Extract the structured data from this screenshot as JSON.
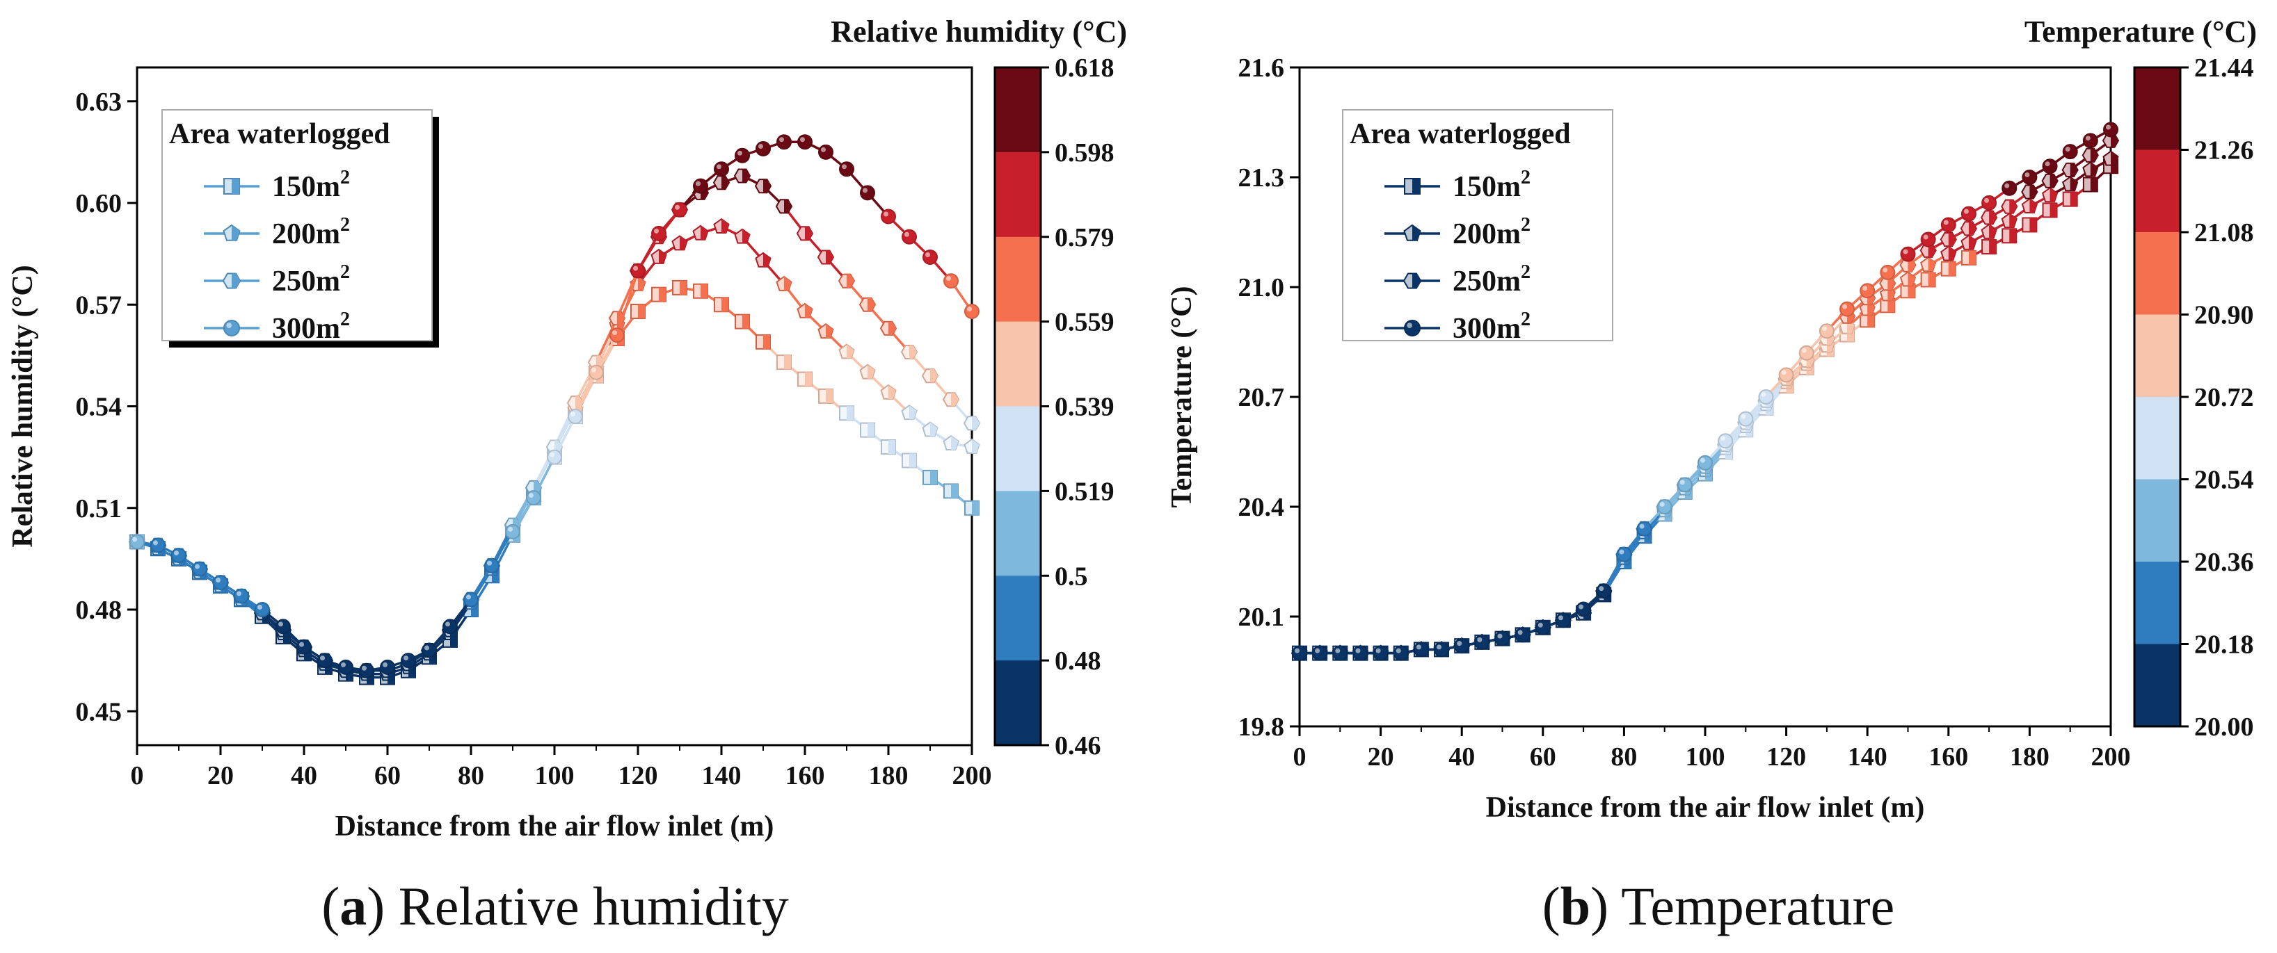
{
  "chart_data": [
    {
      "type": "line",
      "caption": {
        "letter": "a",
        "text": "Relative humidity"
      },
      "title": "",
      "xlabel": "Distance from the air flow inlet (m)",
      "ylabel": "Relative humidity (°C)",
      "xlim": [
        0,
        200
      ],
      "ylim": [
        0.44,
        0.64
      ],
      "xticks": [
        "0",
        "20",
        "40",
        "60",
        "80",
        "100",
        "120",
        "140",
        "160",
        "180",
        "200"
      ],
      "yticks": [
        "0.45",
        "0.48",
        "0.51",
        "0.54",
        "0.57",
        "0.60",
        "0.63"
      ],
      "grid": false,
      "legend": {
        "title": "Area waterlogged",
        "position": "top-left"
      },
      "colorbar": {
        "title": "Relative humidity (°C)",
        "ticks": [
          "0.618",
          "0.598",
          "0.579",
          "0.559",
          "0.539",
          "0.519",
          "0.5",
          "0.48",
          "0.46"
        ],
        "colors": [
          "#6b0a14",
          "#c8202a",
          "#f5704e",
          "#f8c4ac",
          "#cfe1f2",
          "#7fb8dd",
          "#2f7dbf",
          "#0b3466"
        ],
        "min": 0.46,
        "max": 0.618
      },
      "x": [
        0,
        5,
        10,
        15,
        20,
        25,
        30,
        35,
        40,
        45,
        50,
        55,
        60,
        65,
        70,
        75,
        80,
        85,
        90,
        95,
        100,
        105,
        110,
        115,
        120,
        125,
        130,
        135,
        140,
        145,
        150,
        155,
        160,
        165,
        170,
        175,
        180,
        185,
        190,
        195,
        200
      ],
      "series": [
        {
          "name": "150m",
          "name_sup": "2",
          "marker": "square",
          "values": [
            0.5,
            0.498,
            0.495,
            0.491,
            0.487,
            0.483,
            0.478,
            0.472,
            0.467,
            0.463,
            0.461,
            0.46,
            0.46,
            0.462,
            0.466,
            0.471,
            0.48,
            0.49,
            0.502,
            0.513,
            0.525,
            0.537,
            0.549,
            0.56,
            0.568,
            0.573,
            0.575,
            0.574,
            0.57,
            0.565,
            0.559,
            0.553,
            0.548,
            0.543,
            0.538,
            0.533,
            0.528,
            0.524,
            0.519,
            0.515,
            0.51
          ]
        },
        {
          "name": "200m",
          "name_sup": "2",
          "marker": "pentagon",
          "values": [
            0.5,
            0.498,
            0.495,
            0.491,
            0.487,
            0.483,
            0.479,
            0.473,
            0.468,
            0.464,
            0.462,
            0.461,
            0.461,
            0.463,
            0.467,
            0.473,
            0.482,
            0.492,
            0.504,
            0.515,
            0.527,
            0.539,
            0.551,
            0.564,
            0.576,
            0.584,
            0.588,
            0.591,
            0.593,
            0.59,
            0.583,
            0.576,
            0.568,
            0.562,
            0.556,
            0.55,
            0.544,
            0.538,
            0.533,
            0.529,
            0.528
          ]
        },
        {
          "name": "250m",
          "name_sup": "2",
          "marker": "hexagon",
          "values": [
            0.5,
            0.499,
            0.496,
            0.492,
            0.488,
            0.484,
            0.479,
            0.474,
            0.469,
            0.465,
            0.462,
            0.462,
            0.462,
            0.464,
            0.468,
            0.474,
            0.483,
            0.493,
            0.505,
            0.516,
            0.528,
            0.541,
            0.553,
            0.566,
            0.58,
            0.59,
            0.598,
            0.603,
            0.606,
            0.608,
            0.605,
            0.599,
            0.591,
            0.584,
            0.577,
            0.57,
            0.563,
            0.556,
            0.549,
            0.542,
            0.535
          ]
        },
        {
          "name": "300m",
          "name_sup": "2",
          "marker": "circle",
          "values": [
            0.5,
            0.499,
            0.496,
            0.492,
            0.488,
            0.484,
            0.48,
            0.475,
            0.469,
            0.465,
            0.463,
            0.462,
            0.463,
            0.465,
            0.468,
            0.475,
            0.483,
            0.493,
            0.503,
            0.513,
            0.525,
            0.537,
            0.55,
            0.561,
            0.58,
            0.591,
            0.598,
            0.605,
            0.61,
            0.614,
            0.616,
            0.618,
            0.618,
            0.615,
            0.61,
            0.603,
            0.596,
            0.59,
            0.584,
            0.577,
            0.568
          ]
        }
      ]
    },
    {
      "type": "line",
      "caption": {
        "letter": "b",
        "text": "Temperature"
      },
      "title": "",
      "xlabel": "Distance from the air flow inlet (m)",
      "ylabel": "Temperature (°C)",
      "xlim": [
        0,
        200
      ],
      "ylim": [
        19.8,
        21.6
      ],
      "xticks": [
        "0",
        "20",
        "40",
        "60",
        "80",
        "100",
        "120",
        "140",
        "160",
        "180",
        "200"
      ],
      "yticks": [
        "19.8",
        "20.1",
        "20.4",
        "20.7",
        "21.0",
        "21.3",
        "21.6"
      ],
      "grid": false,
      "legend": {
        "title": "Area waterlogged",
        "position": "top-left"
      },
      "colorbar": {
        "title": "Temperature (°C)",
        "ticks": [
          "21.44",
          "21.26",
          "21.08",
          "20.90",
          "20.72",
          "20.54",
          "20.36",
          "20.18",
          "20.00"
        ],
        "colors": [
          "#6b0a14",
          "#c8202a",
          "#f5704e",
          "#f8c4ac",
          "#cfe1f2",
          "#7fb8dd",
          "#2f7dbf",
          "#0b3466"
        ],
        "min": 20.0,
        "max": 21.44
      },
      "x": [
        0,
        5,
        10,
        15,
        20,
        25,
        30,
        35,
        40,
        45,
        50,
        55,
        60,
        65,
        70,
        75,
        80,
        85,
        90,
        95,
        100,
        105,
        110,
        115,
        120,
        125,
        130,
        135,
        140,
        145,
        150,
        155,
        160,
        165,
        170,
        175,
        180,
        185,
        190,
        195,
        200
      ],
      "series": [
        {
          "name": "150m",
          "name_sup": "2",
          "marker": "square",
          "values": [
            20.0,
            20.0,
            20.0,
            20.0,
            20.0,
            20.0,
            20.01,
            20.01,
            20.02,
            20.03,
            20.04,
            20.05,
            20.07,
            20.09,
            20.11,
            20.16,
            20.25,
            20.32,
            20.38,
            20.44,
            20.49,
            20.55,
            20.61,
            20.67,
            20.73,
            20.78,
            20.83,
            20.87,
            20.91,
            20.95,
            20.99,
            21.02,
            21.05,
            21.08,
            21.11,
            21.14,
            21.17,
            21.21,
            21.24,
            21.28,
            21.33
          ]
        },
        {
          "name": "200m",
          "name_sup": "2",
          "marker": "pentagon",
          "values": [
            20.0,
            20.0,
            20.0,
            20.0,
            20.0,
            20.0,
            20.01,
            20.01,
            20.02,
            20.03,
            20.04,
            20.05,
            20.07,
            20.09,
            20.11,
            20.16,
            20.26,
            20.33,
            20.39,
            20.45,
            20.5,
            20.56,
            20.62,
            20.68,
            20.74,
            20.79,
            20.84,
            20.89,
            20.94,
            20.98,
            21.02,
            21.06,
            21.09,
            21.12,
            21.15,
            21.18,
            21.22,
            21.25,
            21.28,
            21.32,
            21.35
          ]
        },
        {
          "name": "250m",
          "name_sup": "2",
          "marker": "hexagon",
          "values": [
            20.0,
            20.0,
            20.0,
            20.0,
            20.0,
            20.0,
            20.01,
            20.01,
            20.02,
            20.03,
            20.04,
            20.05,
            20.07,
            20.09,
            20.11,
            20.17,
            20.27,
            20.34,
            20.4,
            20.46,
            20.51,
            20.57,
            20.63,
            20.69,
            20.75,
            20.8,
            20.86,
            20.92,
            20.97,
            21.01,
            21.06,
            21.1,
            21.13,
            21.16,
            21.19,
            21.22,
            21.26,
            21.29,
            21.32,
            21.36,
            21.4
          ]
        },
        {
          "name": "300m",
          "name_sup": "2",
          "marker": "circle",
          "values": [
            20.0,
            20.0,
            20.0,
            20.0,
            20.0,
            20.0,
            20.01,
            20.01,
            20.02,
            20.03,
            20.04,
            20.05,
            20.07,
            20.09,
            20.12,
            20.17,
            20.27,
            20.34,
            20.4,
            20.46,
            20.52,
            20.58,
            20.64,
            20.7,
            20.76,
            20.82,
            20.88,
            20.94,
            20.99,
            21.04,
            21.09,
            21.13,
            21.17,
            21.2,
            21.23,
            21.27,
            21.3,
            21.33,
            21.37,
            21.4,
            21.43
          ]
        }
      ]
    }
  ]
}
